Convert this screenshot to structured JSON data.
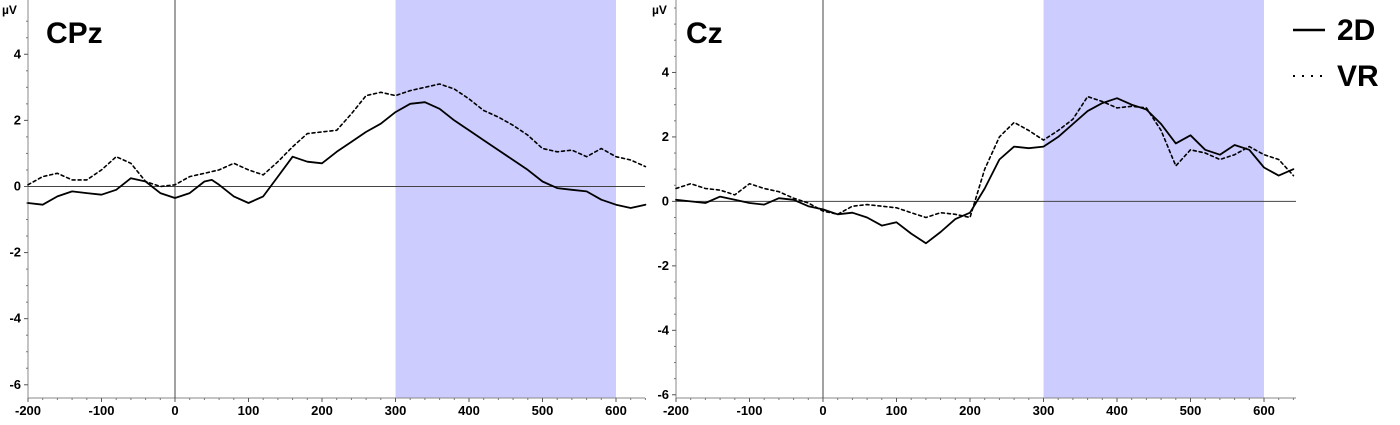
{
  "legend": [
    {
      "symbol": "—",
      "label": "2D",
      "style": "solid"
    },
    {
      "symbol": "···",
      "label": "VR",
      "style": "dotted"
    }
  ],
  "colors": {
    "highlight": "#ccccff",
    "line": "#000000",
    "background": "#ffffff"
  },
  "chart_data": [
    {
      "type": "line",
      "title": "CPz",
      "ylabel": "µV",
      "xlabel": "",
      "xlim": [
        -200,
        640
      ],
      "ylim": [
        -6.4,
        5.4
      ],
      "xticks": [
        -200,
        -100,
        0,
        100,
        200,
        300,
        400,
        500,
        600
      ],
      "yticks": [
        -6,
        -4,
        -2,
        0,
        2,
        4
      ],
      "highlight": [
        300,
        600
      ],
      "zero_lines": true,
      "series": [
        {
          "name": "2D",
          "style": "solid",
          "x": [
            -200,
            -180,
            -160,
            -140,
            -120,
            -100,
            -80,
            -60,
            -40,
            -20,
            0,
            20,
            40,
            50,
            60,
            80,
            100,
            120,
            140,
            160,
            180,
            200,
            220,
            240,
            260,
            280,
            300,
            320,
            340,
            360,
            380,
            400,
            420,
            440,
            460,
            480,
            500,
            520,
            540,
            560,
            580,
            600,
            620,
            640
          ],
          "y": [
            -0.5,
            -0.55,
            -0.3,
            -0.15,
            -0.2,
            -0.25,
            -0.1,
            0.25,
            0.15,
            -0.2,
            -0.35,
            -0.2,
            0.15,
            0.2,
            0.05,
            -0.3,
            -0.5,
            -0.3,
            0.3,
            0.9,
            0.75,
            0.7,
            1.05,
            1.35,
            1.65,
            1.9,
            2.25,
            2.5,
            2.55,
            2.35,
            2.0,
            1.7,
            1.4,
            1.1,
            0.8,
            0.5,
            0.15,
            -0.05,
            -0.1,
            -0.15,
            -0.4,
            -0.55,
            -0.65,
            -0.55
          ]
        },
        {
          "name": "VR",
          "style": "dotted",
          "x": [
            -200,
            -180,
            -160,
            -140,
            -120,
            -100,
            -80,
            -60,
            -40,
            -20,
            0,
            20,
            40,
            60,
            80,
            100,
            120,
            140,
            160,
            180,
            200,
            220,
            240,
            260,
            280,
            300,
            320,
            340,
            360,
            380,
            400,
            420,
            440,
            460,
            480,
            500,
            520,
            540,
            560,
            580,
            600,
            620,
            640
          ],
          "y": [
            0.05,
            0.3,
            0.4,
            0.2,
            0.2,
            0.5,
            0.9,
            0.7,
            0.15,
            0.0,
            0.05,
            0.3,
            0.4,
            0.5,
            0.7,
            0.5,
            0.35,
            0.75,
            1.2,
            1.6,
            1.65,
            1.7,
            2.2,
            2.75,
            2.85,
            2.75,
            2.9,
            3.0,
            3.1,
            2.95,
            2.65,
            2.3,
            2.1,
            1.85,
            1.55,
            1.15,
            1.05,
            1.1,
            0.9,
            1.15,
            0.9,
            0.8,
            0.6
          ]
        }
      ]
    },
    {
      "type": "line",
      "title": "Cz",
      "ylabel": "µV",
      "xlabel": "",
      "xlim": [
        -200,
        640
      ],
      "ylim": [
        -6.1,
        6.0
      ],
      "xticks": [
        -200,
        -100,
        0,
        100,
        200,
        300,
        400,
        500,
        600
      ],
      "yticks": [
        -6,
        -4,
        -2,
        0,
        2,
        4
      ],
      "highlight": [
        300,
        600
      ],
      "zero_lines": true,
      "series": [
        {
          "name": "2D",
          "style": "solid",
          "x": [
            -200,
            -180,
            -160,
            -140,
            -120,
            -100,
            -80,
            -60,
            -40,
            -20,
            0,
            20,
            40,
            60,
            80,
            100,
            120,
            140,
            160,
            180,
            200,
            220,
            240,
            260,
            280,
            300,
            320,
            340,
            360,
            380,
            400,
            420,
            440,
            460,
            480,
            500,
            520,
            540,
            560,
            580,
            600,
            620,
            640
          ],
          "y": [
            0.05,
            0.0,
            -0.05,
            0.15,
            0.05,
            -0.05,
            -0.1,
            0.1,
            0.05,
            -0.15,
            -0.25,
            -0.4,
            -0.35,
            -0.5,
            -0.75,
            -0.65,
            -1.0,
            -1.3,
            -0.95,
            -0.55,
            -0.35,
            0.4,
            1.3,
            1.7,
            1.65,
            1.7,
            2.0,
            2.4,
            2.8,
            3.05,
            3.2,
            3.0,
            2.85,
            2.4,
            1.8,
            2.05,
            1.6,
            1.45,
            1.75,
            1.6,
            1.05,
            0.8,
            1.0
          ]
        },
        {
          "name": "VR",
          "style": "dotted",
          "x": [
            -200,
            -180,
            -160,
            -140,
            -120,
            -100,
            -80,
            -60,
            -40,
            -20,
            0,
            20,
            40,
            60,
            80,
            100,
            120,
            140,
            160,
            180,
            200,
            220,
            240,
            260,
            280,
            300,
            320,
            340,
            360,
            380,
            400,
            420,
            440,
            460,
            480,
            500,
            520,
            540,
            560,
            580,
            600,
            620,
            640
          ],
          "y": [
            0.4,
            0.55,
            0.4,
            0.35,
            0.2,
            0.55,
            0.4,
            0.3,
            0.1,
            -0.05,
            -0.3,
            -0.4,
            -0.15,
            -0.1,
            -0.15,
            -0.2,
            -0.35,
            -0.5,
            -0.35,
            -0.4,
            -0.5,
            1.0,
            2.0,
            2.45,
            2.2,
            1.9,
            2.2,
            2.55,
            3.25,
            3.1,
            2.9,
            2.95,
            2.9,
            2.2,
            1.1,
            1.6,
            1.5,
            1.3,
            1.45,
            1.7,
            1.45,
            1.3,
            0.8
          ]
        }
      ]
    }
  ]
}
